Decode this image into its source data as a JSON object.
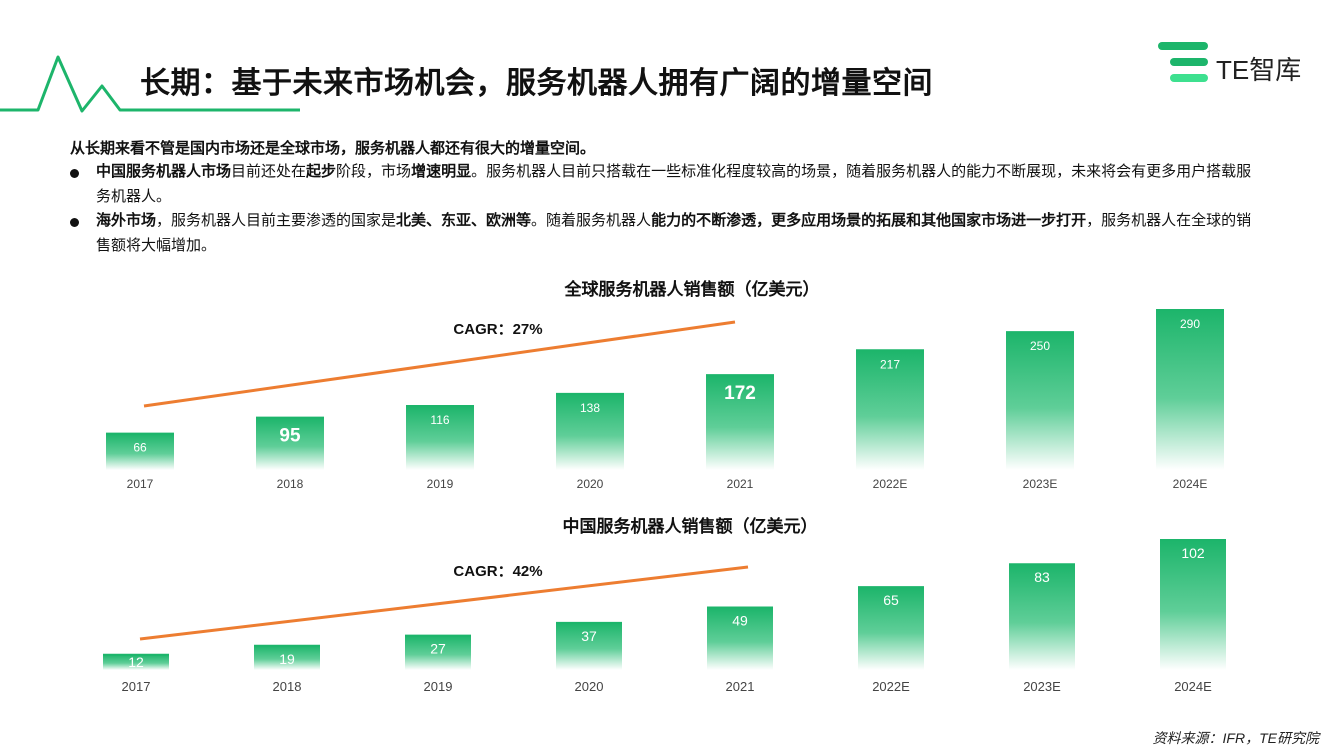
{
  "header": {
    "title": "长期：基于未来市场机会，服务机器人拥有广阔的增量空间",
    "logo_text": "TE智库",
    "colors": {
      "accent_green": "#1db56b",
      "trend_orange": "#ed7d31"
    }
  },
  "intro": {
    "heading": "从长期来看不管是国内市场还是全球市场，服务机器人都还有很大的增量空间。",
    "bullets": [
      {
        "segments": [
          {
            "text": "中国服务机器人市场",
            "bold": true
          },
          {
            "text": "目前还处在",
            "bold": false
          },
          {
            "text": "起步",
            "bold": true
          },
          {
            "text": "阶段，市场",
            "bold": false
          },
          {
            "text": "增速明显",
            "bold": true
          },
          {
            "text": "。服务机器人目前只搭载在一些标准化程度较高的场景，随着服务机器人的能力不断展现，未来将会有更多用户搭载服务机器人。",
            "bold": false
          }
        ]
      },
      {
        "segments": [
          {
            "text": "海外市场",
            "bold": true
          },
          {
            "text": "，服务机器人目前主要渗透的国家是",
            "bold": false
          },
          {
            "text": "北美、东亚、欧洲等",
            "bold": true
          },
          {
            "text": "。随着服务机器人",
            "bold": false
          },
          {
            "text": "能力的不断渗透，更多应用场景的拓展和其他国家市场进一步打开",
            "bold": true
          },
          {
            "text": "，服务机器人在全球的销售额将大幅增加。",
            "bold": false
          }
        ]
      }
    ]
  },
  "chart_data": [
    {
      "type": "bar",
      "title": "全球服务机器人销售额（亿美元）",
      "categories": [
        "2017",
        "2018",
        "2019",
        "2020",
        "2021",
        "2022E",
        "2023E",
        "2024E"
      ],
      "values": [
        66,
        95,
        116,
        138,
        172,
        217,
        250,
        290
      ],
      "annotation": "CAGR：27%",
      "trend_line": true,
      "emphasized_labels": [
        "2018",
        "2021"
      ],
      "xlabel": "",
      "ylabel": "",
      "grid": false
    },
    {
      "type": "bar",
      "title": "中国服务机器人销售额（亿美元）",
      "categories": [
        "2017",
        "2018",
        "2019",
        "2020",
        "2021",
        "2022E",
        "2023E",
        "2024E"
      ],
      "values": [
        12,
        19,
        27,
        37,
        49,
        65,
        83,
        102
      ],
      "annotation": "CAGR：42%",
      "trend_line": true,
      "xlabel": "",
      "ylabel": "",
      "grid": false
    }
  ],
  "footer": {
    "source": "资料来源：IFR，TE研究院"
  }
}
